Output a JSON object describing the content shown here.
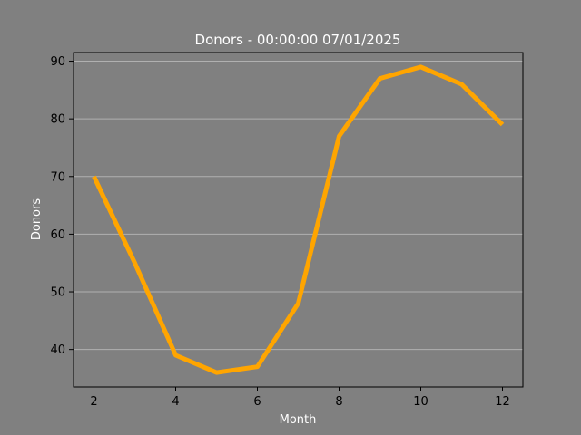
{
  "chart_data": {
    "type": "line",
    "title": "Donors - 00:00:00 07/01/2025",
    "xlabel": "Month",
    "ylabel": "Donors",
    "x": [
      2,
      3,
      4,
      5,
      6,
      7,
      8,
      9,
      10,
      11,
      12
    ],
    "series": [
      {
        "values": [
          70,
          55,
          39,
          36,
          37,
          48,
          77,
          87,
          89,
          86,
          79
        ],
        "color": "#ffa500"
      }
    ],
    "xlim": [
      1.5,
      12.5
    ],
    "ylim": [
      33.5,
      91.5
    ],
    "xticks": [
      2,
      4,
      6,
      8,
      10,
      12
    ],
    "yticks": [
      40,
      50,
      60,
      70,
      80,
      90
    ],
    "grid": "horizontal",
    "legend": "none"
  },
  "colors": {
    "background": "#808080",
    "axes_background": "#808080",
    "line": "#ffa500",
    "grid": "#b0b0b0",
    "axis": "#000000",
    "title_text": "#ffffff",
    "label_text": "#ffffff",
    "tick_text": "#000000"
  }
}
